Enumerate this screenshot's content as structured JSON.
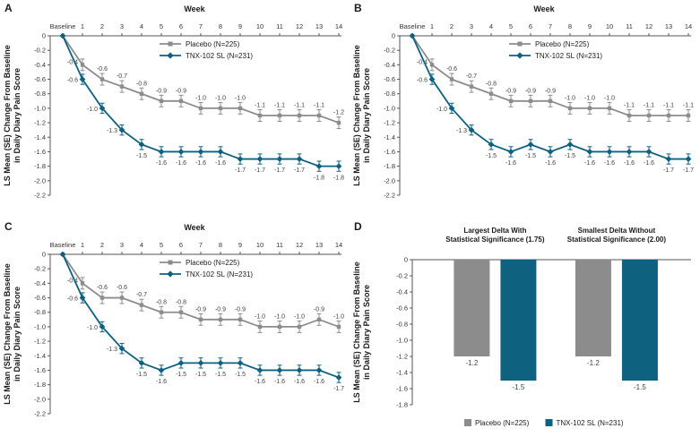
{
  "figure": {
    "panel_letters": [
      "A",
      "B",
      "C",
      "D"
    ],
    "background": "#ffffff"
  },
  "colors": {
    "placebo": "#8c8c8c",
    "tnx": "#0e617f",
    "axis": "#555555",
    "tick_text": "#333333",
    "data_label": "#3f3f3f",
    "title_text": "#1a1a1a"
  },
  "shared": {
    "ylabel_lines": [
      "LS Mean (SE) Change From Baseline",
      "in Daily Diary Pain Score"
    ],
    "xlabel": "Week",
    "legend": {
      "placebo": "Placebo (N=225)",
      "tnx": "TNX-102 SL (N=231)"
    }
  },
  "chart_data": [
    {
      "panel": "A",
      "type": "line",
      "xlabel": "Week",
      "ylabel": "LS Mean (SE) Change From Baseline in Daily Diary Pain Score",
      "ylim": [
        0,
        -2.2
      ],
      "ytick_step": 0.2,
      "categories": [
        "Baseline",
        "1",
        "2",
        "3",
        "4",
        "5",
        "6",
        "7",
        "8",
        "9",
        "10",
        "11",
        "12",
        "13",
        "14"
      ],
      "series": [
        {
          "name": "Placebo (N=225)",
          "color_key": "placebo",
          "marker": "square",
          "se": 0.08,
          "label_side": "above",
          "values": [
            0,
            -0.4,
            -0.6,
            -0.7,
            -0.8,
            -0.9,
            -0.9,
            -1.0,
            -1.0,
            -1.0,
            -1.1,
            -1.1,
            -1.1,
            -1.1,
            -1.2
          ]
        },
        {
          "name": "TNX-102 SL (N=231)",
          "color_key": "tnx",
          "marker": "diamond",
          "se": 0.07,
          "label_side": "below",
          "values": [
            0,
            -0.6,
            -1.0,
            -1.3,
            -1.5,
            -1.6,
            -1.6,
            -1.6,
            -1.6,
            -1.7,
            -1.7,
            -1.7,
            -1.7,
            -1.8,
            -1.8
          ]
        }
      ]
    },
    {
      "panel": "B",
      "type": "line",
      "xlabel": "Week",
      "ylabel": "LS Mean (SE) Change From Baseline in Daily Diary Pain Score",
      "ylim": [
        0,
        -2.2
      ],
      "ytick_step": 0.2,
      "categories": [
        "Baseline",
        "1",
        "2",
        "3",
        "4",
        "5",
        "6",
        "7",
        "8",
        "9",
        "10",
        "11",
        "12",
        "13",
        "14"
      ],
      "series": [
        {
          "name": "Placebo (N=225)",
          "color_key": "placebo",
          "marker": "square",
          "se": 0.08,
          "label_side": "above",
          "values": [
            0,
            -0.4,
            -0.6,
            -0.7,
            -0.8,
            -0.9,
            -0.9,
            -0.9,
            -1.0,
            -1.0,
            -1.0,
            -1.1,
            -1.1,
            -1.1,
            -1.1
          ]
        },
        {
          "name": "TNX-102 SL (N=231)",
          "color_key": "tnx",
          "marker": "diamond",
          "se": 0.07,
          "label_side": "below",
          "values": [
            0,
            -0.6,
            -1.0,
            -1.3,
            -1.5,
            -1.6,
            -1.5,
            -1.6,
            -1.5,
            -1.6,
            -1.6,
            -1.6,
            -1.6,
            -1.7,
            -1.7
          ]
        }
      ]
    },
    {
      "panel": "C",
      "type": "line",
      "xlabel": "Week",
      "ylabel": "LS Mean (SE) Change From Baseline in Daily Diary Pain Score",
      "ylim": [
        0,
        -2.2
      ],
      "ytick_step": 0.2,
      "categories": [
        "Baseline",
        "1",
        "2",
        "3",
        "4",
        "5",
        "6",
        "7",
        "8",
        "9",
        "10",
        "11",
        "12",
        "13",
        "14"
      ],
      "series": [
        {
          "name": "Placebo (N=225)",
          "color_key": "placebo",
          "marker": "square",
          "se": 0.08,
          "label_side": "above",
          "values": [
            0,
            -0.4,
            -0.6,
            -0.6,
            -0.7,
            -0.8,
            -0.8,
            -0.9,
            -0.9,
            -0.9,
            -1.0,
            -1.0,
            -1.0,
            -0.9,
            -1.0
          ]
        },
        {
          "name": "TNX-102 SL (N=231)",
          "color_key": "tnx",
          "marker": "diamond",
          "se": 0.07,
          "label_side": "below",
          "values": [
            0,
            -0.6,
            -1.0,
            -1.3,
            -1.5,
            -1.6,
            -1.5,
            -1.5,
            -1.5,
            -1.5,
            -1.6,
            -1.6,
            -1.6,
            -1.6,
            -1.7
          ]
        }
      ]
    },
    {
      "panel": "D",
      "type": "bar",
      "ylabel": "LS Mean (SE) Change From Baseline in Daily Diary Pain Score",
      "ylim": [
        0,
        -1.8
      ],
      "ytick_step": 0.2,
      "group_titles": [
        [
          "Largest Delta With",
          "Statistical Significance (1.75)"
        ],
        [
          "Smallest Delta Without",
          "Statistical Significance (2.00)"
        ]
      ],
      "series": [
        {
          "name": "Placebo (N=225)",
          "color_key": "placebo",
          "values": [
            -1.2,
            -1.2
          ]
        },
        {
          "name": "TNX-102 SL (N=231)",
          "color_key": "tnx",
          "values": [
            -1.5,
            -1.5
          ]
        }
      ],
      "legend_position": "bottom"
    }
  ]
}
